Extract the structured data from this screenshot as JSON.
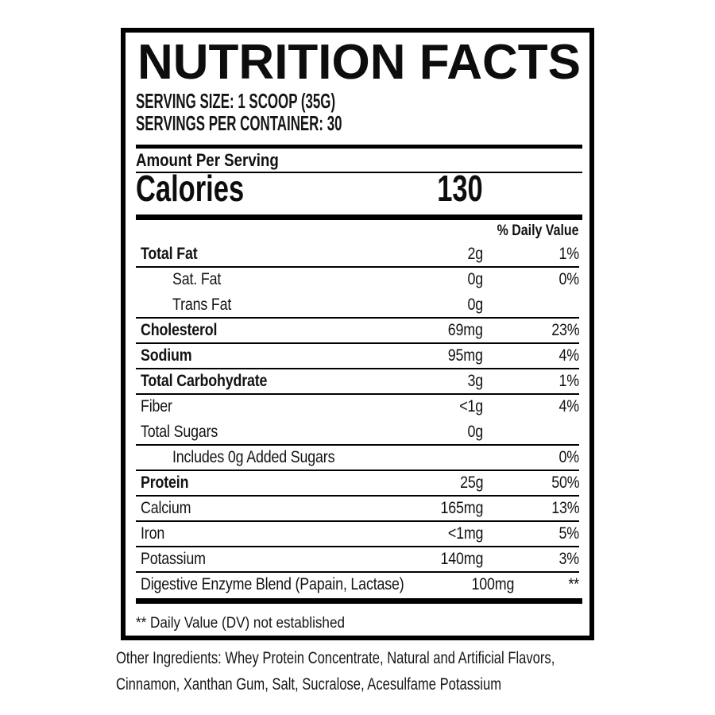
{
  "label": {
    "title": "NUTRITION FACTS",
    "serving_size": "SERVING SIZE: 1 SCOOP (35G)",
    "servings_per_container": "SERVINGS PER CONTAINER: 30",
    "amount_per_serving": "Amount Per Serving",
    "calories_label": "Calories",
    "calories_value": "130",
    "daily_value_header": "% Daily Value",
    "rows": [
      {
        "label": "Total Fat",
        "value": "2g",
        "dv": "1%"
      },
      {
        "label": "Sat. Fat",
        "value": "0g",
        "dv": "0%"
      },
      {
        "label": "Trans Fat",
        "value": "0g",
        "dv": ""
      },
      {
        "label": "Cholesterol",
        "value": "69mg",
        "dv": "23%"
      },
      {
        "label": "Sodium",
        "value": "95mg",
        "dv": "4%"
      },
      {
        "label": "Total Carbohydrate",
        "value": "3g",
        "dv": "1%"
      },
      {
        "label": "Fiber",
        "value": "<1g",
        "dv": "4%"
      },
      {
        "label": "Total Sugars",
        "value": "0g",
        "dv": ""
      },
      {
        "label": "Includes 0g Added Sugars",
        "value": "",
        "dv": "0%"
      },
      {
        "label": "Protein",
        "value": "25g",
        "dv": "50%"
      },
      {
        "label": "Calcium",
        "value": "165mg",
        "dv": "13%"
      },
      {
        "label": "Iron",
        "value": "<1mg",
        "dv": "5%"
      },
      {
        "label": "Potassium",
        "value": "140mg",
        "dv": "3%"
      },
      {
        "label": "Digestive Enzyme Blend (Papain, Lactase)",
        "value": "100mg",
        "dv": "**"
      }
    ],
    "footnote": "** Daily Value (DV) not established",
    "ingredients_line1": "Other Ingredients: Whey Protein Concentrate, Natural and Artificial Flavors,",
    "ingredients_line2": "Cinnamon, Xanthan Gum, Salt, Sucralose, Acesulfame Potassium"
  },
  "colors": {
    "text": "#0f0f0f",
    "rule": "#000000",
    "background": "#ffffff"
  }
}
